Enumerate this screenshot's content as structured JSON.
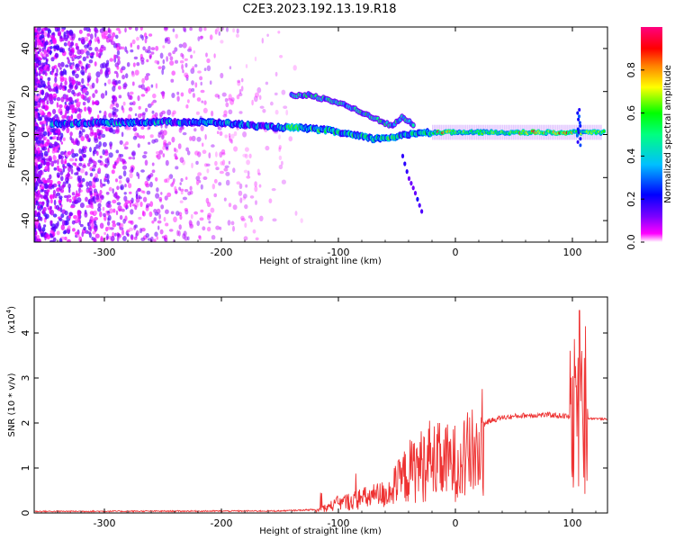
{
  "title": "C2E3.2023.192.13.19.R18",
  "chart_data": [
    {
      "type": "heatmap",
      "xlabel": "Height of straight line (km)",
      "ylabel": "Frequency (Hz)",
      "xlim": [
        -360,
        130
      ],
      "ylim": [
        -50,
        50
      ],
      "xticks": [
        -300,
        -200,
        -100,
        0,
        100
      ],
      "yticks": [
        -40,
        -20,
        0,
        20,
        40
      ],
      "colorbar": {
        "label": "Normalized spectral amplitude",
        "range": [
          0,
          1
        ],
        "ticks": [
          "0.0",
          "0.2",
          "0.4",
          "0.6",
          "0.8"
        ],
        "colormap": [
          "#ffffff",
          "#ff00ff",
          "#7a00ff",
          "#0000ff",
          "#00bfff",
          "#00ff80",
          "#00ff00",
          "#ffff00",
          "#ff8000",
          "#ff0000",
          "#ff0080"
        ]
      },
      "ridge": [
        [
          -340,
          5
        ],
        [
          -300,
          5.5
        ],
        [
          -250,
          6
        ],
        [
          -200,
          5.5
        ],
        [
          -160,
          3.5
        ],
        [
          -130,
          3
        ],
        [
          -110,
          2
        ],
        [
          -90,
          0
        ],
        [
          -70,
          -2
        ],
        [
          -50,
          -1
        ],
        [
          -30,
          1
        ],
        [
          -10,
          1
        ],
        [
          20,
          1
        ],
        [
          60,
          1
        ],
        [
          100,
          1
        ],
        [
          125,
          1
        ]
      ],
      "upper_branch": [
        [
          -140,
          18
        ],
        [
          -125,
          18.5
        ],
        [
          -95,
          14
        ],
        [
          -80,
          10
        ],
        [
          -70,
          8
        ],
        [
          -55,
          4
        ],
        [
          -45,
          8
        ],
        [
          -35,
          4
        ]
      ],
      "lower_branch": [
        [
          -45,
          -10
        ],
        [
          -40,
          -20
        ],
        [
          -35,
          -26
        ],
        [
          -28,
          -37
        ]
      ]
    },
    {
      "type": "line",
      "xlabel": "Height of straight line (km)",
      "ylabel": "SNR (10 * v/v)",
      "yscale_note": "(x10",
      "yscale_exp": "4",
      "yscale_close": ")",
      "xlim": [
        -360,
        130
      ],
      "ylim": [
        0,
        4.8
      ],
      "xticks": [
        -300,
        -200,
        -100,
        0,
        100
      ],
      "yticks": [
        0,
        1,
        2,
        3,
        4
      ],
      "color": "#ee3333",
      "envelope": [
        [
          -360,
          0.02
        ],
        [
          -150,
          0.03
        ],
        [
          -120,
          0.06
        ],
        [
          -100,
          0.3
        ],
        [
          -80,
          0.45
        ],
        [
          -60,
          0.6
        ],
        [
          -50,
          0.9
        ],
        [
          -40,
          1.3
        ],
        [
          -30,
          1.5
        ],
        [
          -20,
          1.6
        ],
        [
          -10,
          1.6
        ],
        [
          0,
          1.6
        ],
        [
          10,
          1.8
        ],
        [
          20,
          1.95
        ],
        [
          30,
          2.05
        ],
        [
          40,
          2.12
        ],
        [
          60,
          2.17
        ],
        [
          80,
          2.18
        ],
        [
          95,
          2.15
        ],
        [
          100,
          2.1
        ],
        [
          103,
          2.3
        ],
        [
          106,
          2.2
        ],
        [
          109,
          2.0
        ],
        [
          112,
          2.1
        ],
        [
          120,
          2.1
        ],
        [
          130,
          2.08
        ]
      ],
      "spikes": [
        [
          -22,
          2.05
        ],
        [
          -15,
          2.0
        ],
        [
          -8,
          1.9
        ],
        [
          102,
          3.0
        ],
        [
          106,
          4.5
        ],
        [
          108,
          3.6
        ],
        [
          111,
          4.15
        ]
      ]
    }
  ]
}
